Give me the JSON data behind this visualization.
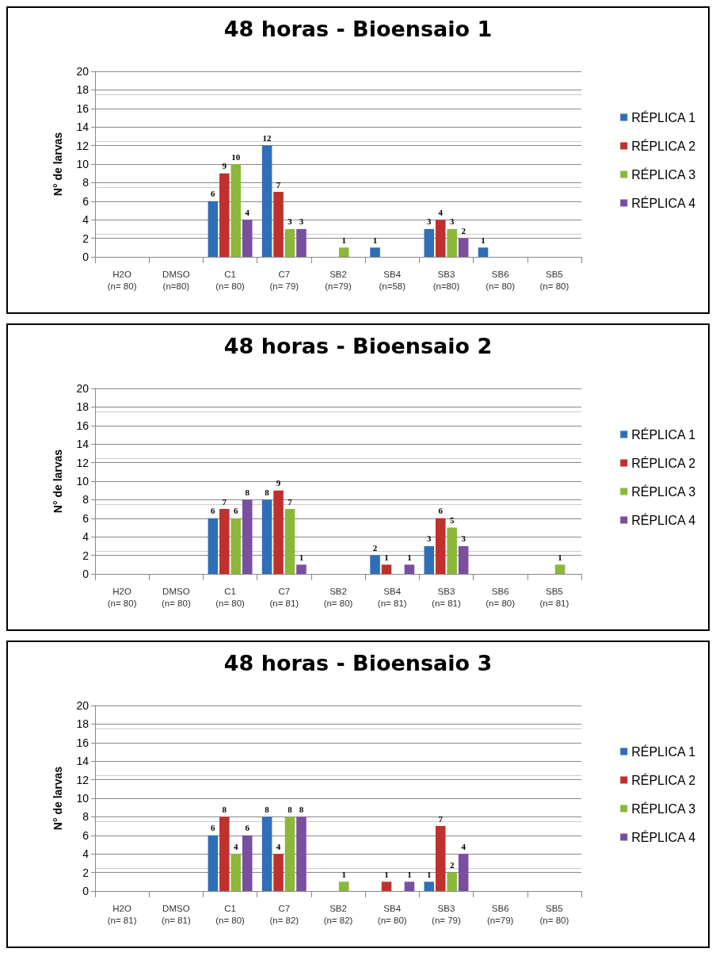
{
  "chart_data": [
    {
      "type": "bar",
      "title": "48 horas - Bioensaio 1",
      "ylabel": "N° de larvas",
      "categories": [
        "H2O\n(n= 80)",
        "DMSO\n(n=80)",
        "C1\n(n= 80)",
        "C7\n(n= 79)",
        "SB2\n(n=79)",
        "SB4\n(n=58)",
        "SB3\n(n=80)",
        "SB6\n(n= 80)",
        "SB5\n(n= 80)"
      ],
      "series": [
        {
          "name": "RÉPLICA 1",
          "color": "#2e6fb8",
          "values": [
            null,
            null,
            6,
            12,
            null,
            1,
            3,
            1,
            null
          ]
        },
        {
          "name": "RÉPLICA 2",
          "color": "#c0302c",
          "values": [
            null,
            null,
            9,
            7,
            null,
            null,
            4,
            null,
            null
          ]
        },
        {
          "name": "RÉPLICA 3",
          "color": "#8cb83a",
          "values": [
            null,
            null,
            10,
            3,
            1,
            null,
            3,
            null,
            null
          ]
        },
        {
          "name": "RÉPLICA 4",
          "color": "#7a4fa0",
          "values": [
            null,
            null,
            4,
            3,
            null,
            null,
            2,
            null,
            null
          ]
        }
      ],
      "ylim": [
        0,
        20
      ],
      "yticks": [
        0,
        2,
        4,
        6,
        8,
        10,
        12,
        14,
        16,
        18,
        20
      ],
      "grid": "y",
      "legend": "right",
      "data_labels": true
    },
    {
      "type": "bar",
      "title": "48 horas - Bioensaio 2",
      "ylabel": "N° de larvas",
      "categories": [
        "H2O\n(n= 80)",
        "DMSO\n(n= 80)",
        "C1\n(n= 80)",
        "C7\n(n= 81)",
        "SB2\n(n= 80)",
        "SB4\n(n= 81)",
        "SB3\n(n= 81)",
        "SB6\n(n= 80)",
        "SB5\n(n= 81)"
      ],
      "series": [
        {
          "name": "RÉPLICA 1",
          "color": "#2e6fb8",
          "values": [
            null,
            null,
            6,
            8,
            null,
            2,
            3,
            null,
            null
          ]
        },
        {
          "name": "RÉPLICA 2",
          "color": "#c0302c",
          "values": [
            null,
            null,
            7,
            9,
            null,
            1,
            6,
            null,
            null
          ]
        },
        {
          "name": "RÉPLICA 3",
          "color": "#8cb83a",
          "values": [
            null,
            null,
            6,
            7,
            null,
            null,
            5,
            null,
            1
          ]
        },
        {
          "name": "RÉPLICA 4",
          "color": "#7a4fa0",
          "values": [
            null,
            null,
            8,
            1,
            null,
            1,
            3,
            null,
            null
          ]
        }
      ],
      "ylim": [
        0,
        20
      ],
      "yticks": [
        0,
        2,
        4,
        6,
        8,
        10,
        12,
        14,
        16,
        18,
        20
      ],
      "grid": "y",
      "legend": "right",
      "data_labels": true
    },
    {
      "type": "bar",
      "title": "48 horas - Bioensaio 3",
      "ylabel": "N° de larvas",
      "categories": [
        "H2O\n(n= 81)",
        "DMSO\n(n= 81)",
        "C1\n(n= 80)",
        "C7\n(n= 82)",
        "SB2\n(n= 82)",
        "SB4\n(n= 80)",
        "SB3\n(n= 79)",
        "SB6\n(n=79)",
        "SB5\n(n= 80)"
      ],
      "series": [
        {
          "name": "RÉPLICA 1",
          "color": "#2e6fb8",
          "values": [
            null,
            null,
            6,
            8,
            null,
            null,
            1,
            null,
            null
          ]
        },
        {
          "name": "RÉPLICA 2",
          "color": "#c0302c",
          "values": [
            null,
            null,
            8,
            4,
            null,
            1,
            7,
            null,
            null
          ]
        },
        {
          "name": "RÉPLICA 3",
          "color": "#8cb83a",
          "values": [
            null,
            null,
            4,
            8,
            1,
            null,
            2,
            null,
            null
          ]
        },
        {
          "name": "RÉPLICA 4",
          "color": "#7a4fa0",
          "values": [
            null,
            null,
            6,
            8,
            null,
            1,
            4,
            null,
            null
          ]
        }
      ],
      "ylim": [
        0,
        20
      ],
      "yticks": [
        0,
        2,
        4,
        6,
        8,
        10,
        12,
        14,
        16,
        18,
        20
      ],
      "grid": "y",
      "legend": "right",
      "data_labels": true
    }
  ]
}
